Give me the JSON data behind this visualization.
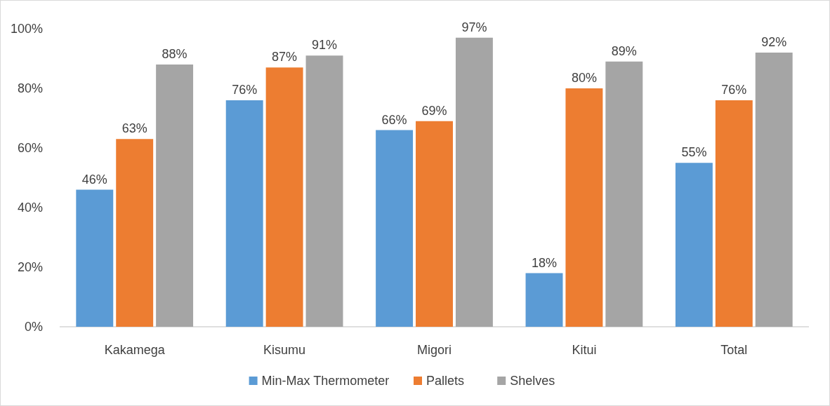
{
  "chart_data": {
    "type": "bar",
    "categories": [
      "Kakamega",
      "Kisumu",
      "Migori",
      "Kitui",
      "Total"
    ],
    "series": [
      {
        "name": "Min-Max Thermometer",
        "color": "#5b9bd5",
        "values": [
          46,
          76,
          66,
          18,
          55
        ]
      },
      {
        "name": "Pallets",
        "color": "#ed7d31",
        "values": [
          63,
          87,
          69,
          80,
          76
        ]
      },
      {
        "name": "Shelves",
        "color": "#a5a5a5",
        "values": [
          88,
          91,
          97,
          89,
          92
        ]
      }
    ],
    "ylim": [
      0,
      100
    ],
    "yticks": [
      {
        "value": 0,
        "label": "0%"
      },
      {
        "value": 20,
        "label": "20%"
      },
      {
        "value": 40,
        "label": "40%"
      },
      {
        "value": 60,
        "label": "60%"
      },
      {
        "value": 80,
        "label": "80%"
      },
      {
        "value": 100,
        "label": "100%"
      }
    ],
    "value_labels": [
      [
        "46%",
        "76%",
        "66%",
        "18%",
        "55%"
      ],
      [
        "63%",
        "87%",
        "69%",
        "80%",
        "76%"
      ],
      [
        "88%",
        "91%",
        "97%",
        "89%",
        "92%"
      ]
    ],
    "grid": false,
    "legend": "bottom"
  }
}
